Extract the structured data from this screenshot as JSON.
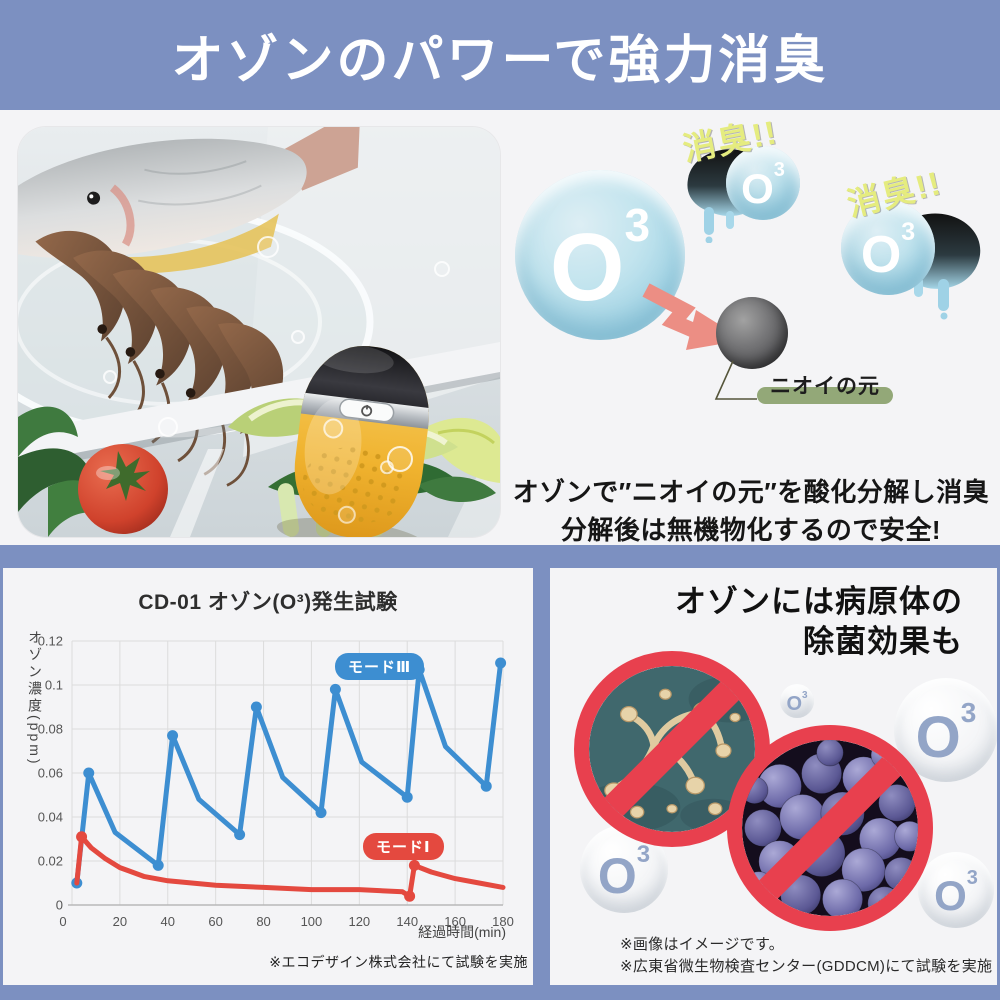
{
  "colors": {
    "banner_blue": "#7c90c1",
    "page_bg": "#f4f4f6",
    "mode3_blue": "#3d8ed1",
    "mode1_red": "#e4493f",
    "prohibition_red": "#e8404e",
    "ozone_bubble_blue": "#9ed2e4",
    "device_yellow": "#f0b32f",
    "odor_label_green": "#93a878"
  },
  "banner": {
    "title": "オゾンのパワーで強力消臭"
  },
  "intro": {
    "o3": {
      "o": "O",
      "sup": "3"
    },
    "deodorize_label": "消臭!!",
    "odor_source_label": "ニオイの元",
    "caption_line1": "オゾンで″ニオイの元″を酸化分解し消臭",
    "caption_line2": "分解後は無機物化するので安全!"
  },
  "chart_panel": {
    "title": "CD-01 オゾン(O³)発生試験",
    "ylabel": "オゾン濃度(ppm)",
    "xlabel": "経過時間(min)",
    "legend": [
      {
        "label": "モードⅢ",
        "color": "#3d8ed1"
      },
      {
        "label": "モードⅠ",
        "color": "#e4493f"
      }
    ],
    "footnote": "※エコデザイン株式会社にて試験を実施"
  },
  "chart_data": {
    "type": "line",
    "title": "CD-01 オゾン(O³)発生試験",
    "xlabel": "経過時間(min)",
    "ylabel": "オゾン濃度(ppm)",
    "xlim": [
      0,
      180
    ],
    "ylim": [
      0,
      0.12
    ],
    "xticks": [
      0,
      20,
      40,
      60,
      80,
      100,
      120,
      140,
      160,
      180
    ],
    "yticks": [
      0,
      0.02,
      0.04,
      0.06,
      0.08,
      0.1,
      0.12
    ],
    "ytick_labels": [
      "0",
      "0.02",
      "0.04",
      "0.06",
      "0.08",
      "0.1",
      "0.12"
    ],
    "grid": true,
    "legend_position": "inline-badges",
    "series": [
      {
        "name": "モードⅢ",
        "color": "#3d8ed1",
        "points": [
          [
            2,
            0.01,
            1
          ],
          [
            7,
            0.06,
            1
          ],
          [
            18,
            0.033
          ],
          [
            36,
            0.018,
            1
          ],
          [
            42,
            0.077,
            1
          ],
          [
            53,
            0.048
          ],
          [
            70,
            0.032,
            1
          ],
          [
            77,
            0.09,
            1
          ],
          [
            88,
            0.058
          ],
          [
            104,
            0.042,
            1
          ],
          [
            110,
            0.098,
            1
          ],
          [
            121,
            0.065
          ],
          [
            140,
            0.049,
            1
          ],
          [
            145,
            0.107,
            1
          ],
          [
            156,
            0.072
          ],
          [
            173,
            0.054,
            1
          ],
          [
            179,
            0.11,
            1
          ]
        ]
      },
      {
        "name": "モードⅠ",
        "color": "#e4493f",
        "points": [
          [
            2,
            0.01
          ],
          [
            4,
            0.031,
            1
          ],
          [
            8,
            0.026
          ],
          [
            14,
            0.021
          ],
          [
            20,
            0.017
          ],
          [
            30,
            0.013
          ],
          [
            40,
            0.011
          ],
          [
            60,
            0.009
          ],
          [
            80,
            0.008
          ],
          [
            100,
            0.007
          ],
          [
            120,
            0.007
          ],
          [
            138,
            0.006
          ],
          [
            141,
            0.004,
            1
          ],
          [
            143,
            0.018,
            1
          ],
          [
            150,
            0.015
          ],
          [
            160,
            0.012
          ],
          [
            170,
            0.01
          ],
          [
            180,
            0.008
          ]
        ]
      }
    ]
  },
  "pathogen_panel": {
    "title_line1": "オゾンには病原体の",
    "title_line2": "除菌効果も",
    "note1": "※画像はイメージです。",
    "note2": "※広東省微生物検査センター(GDDCM)にて試験を実施"
  }
}
